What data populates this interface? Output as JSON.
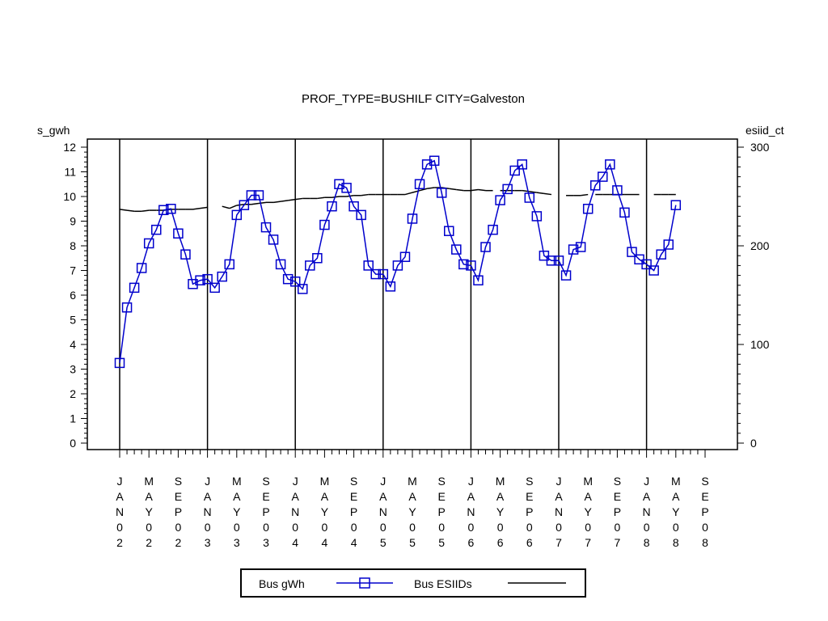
{
  "chart_data": {
    "type": "line",
    "title": "PROF_TYPE=BUSHILF CITY=Galveston",
    "ylabel_left": "s_gwh",
    "ylabel_right": "esiid_ct",
    "ylim_left": [
      0,
      12
    ],
    "ylim_right": [
      0,
      300
    ],
    "yticks_left": [
      "0",
      "1",
      "2",
      "3",
      "4",
      "5",
      "6",
      "7",
      "8",
      "9",
      "10",
      "11",
      "12"
    ],
    "yticks_right": [
      "0",
      "100",
      "200",
      "300"
    ],
    "xticks": [
      "JAN02",
      "MAY02",
      "SEP02",
      "JAN03",
      "MAY03",
      "SEP03",
      "JAN04",
      "MAY04",
      "SEP04",
      "JAN05",
      "MAY05",
      "SEP05",
      "JAN06",
      "MAY06",
      "SEP06",
      "JAN07",
      "MAY07",
      "SEP07",
      "JAN08",
      "MAY08",
      "SEP08"
    ],
    "x_start": "2002-01",
    "series": [
      {
        "name": "Bus gWh",
        "axis": "left",
        "color": "#0000CC",
        "marker": "square",
        "values": [
          3.25,
          5.5,
          6.3,
          7.1,
          8.1,
          8.65,
          9.45,
          9.5,
          8.5,
          7.65,
          6.45,
          6.6,
          6.65,
          6.3,
          6.75,
          7.25,
          9.25,
          9.65,
          10.05,
          10.05,
          8.75,
          8.25,
          7.25,
          6.65,
          6.55,
          6.25,
          7.2,
          7.5,
          8.85,
          9.6,
          10.5,
          10.35,
          9.6,
          9.25,
          7.2,
          6.85,
          6.85,
          6.35,
          7.2,
          7.55,
          9.1,
          10.5,
          11.3,
          11.45,
          10.15,
          8.6,
          7.85,
          7.25,
          7.2,
          6.6,
          7.95,
          8.65,
          9.85,
          10.3,
          11.05,
          11.3,
          9.95,
          9.2,
          7.6,
          7.4,
          7.4,
          6.8,
          7.85,
          7.95,
          9.5,
          10.45,
          10.8,
          11.3,
          10.25,
          9.35,
          7.75,
          7.45,
          7.25,
          7.0,
          7.65,
          8.05,
          9.65
        ]
      },
      {
        "name": "Bus ESIIDs",
        "axis": "right",
        "color": "#000000",
        "values": [
          237,
          236,
          235,
          235,
          236,
          236,
          236,
          237,
          237,
          237,
          237,
          238,
          239,
          240,
          240,
          238,
          241,
          242,
          242,
          243,
          244,
          244,
          245,
          246,
          247,
          248,
          248,
          248,
          249,
          249,
          250,
          250,
          251,
          251,
          252,
          252,
          252,
          252,
          252,
          252,
          254,
          256,
          258,
          259,
          259,
          258,
          257,
          256,
          256,
          257,
          256,
          256,
          256,
          256,
          256,
          256,
          255,
          254,
          253,
          252,
          252,
          251,
          251,
          251,
          252,
          252,
          252,
          252,
          252,
          252,
          252,
          252,
          252,
          252,
          252,
          252,
          252
        ]
      }
    ],
    "esiid_gaps": [
      12,
      13,
      51,
      59,
      60,
      64,
      71,
      72
    ]
  },
  "legend": {
    "items": [
      {
        "label": "Bus gWh"
      },
      {
        "label": "Bus ESIIDs"
      }
    ]
  }
}
